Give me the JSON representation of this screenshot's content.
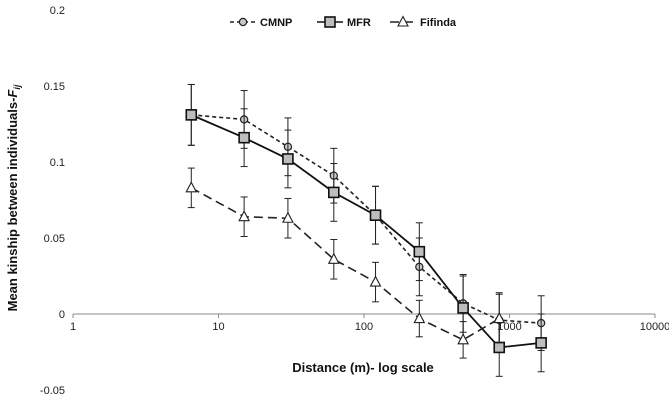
{
  "chart_data": {
    "type": "line",
    "xlabel": "Distance (m)- log scale",
    "ylabel": "Mean kinship between individuals-",
    "ylabel_symbol": "F",
    "ylabel_subscript": "ij",
    "x_scale": "log",
    "xlim": [
      1,
      10000
    ],
    "ylim": [
      -0.05,
      0.2
    ],
    "x_ticks": [
      1,
      10,
      100,
      1000,
      10000
    ],
    "x_tick_labels": [
      "1",
      "10",
      "100",
      "1000",
      "10000"
    ],
    "y_ticks": [
      -0.05,
      0,
      0.05,
      0.1,
      0.15,
      0.2
    ],
    "y_tick_labels": [
      "-0.05",
      "0",
      "0.05",
      "0.1",
      "0.15",
      "0.2"
    ],
    "grid": false,
    "legend_position": "top-center",
    "series": [
      {
        "name": "CMNP",
        "line_style": "short-dash",
        "marker": "circle",
        "marker_fill": "#c8c8c8",
        "color": "#222222",
        "x": [
          6.5,
          15,
          30,
          62,
          120,
          240,
          480,
          850,
          1650
        ],
        "y": [
          0.131,
          0.128,
          0.11,
          0.091,
          0.065,
          0.031,
          0.007,
          -0.004,
          -0.006
        ],
        "err": [
          0.02,
          0.019,
          0.019,
          0.018,
          0.019,
          0.019,
          0.019,
          0.018,
          0.018
        ]
      },
      {
        "name": "MFR",
        "line_style": "solid",
        "marker": "square",
        "marker_fill": "#bdbdbd",
        "color": "#111111",
        "x": [
          6.5,
          15,
          30,
          62,
          120,
          240,
          480,
          850,
          1650
        ],
        "y": [
          0.131,
          0.116,
          0.102,
          0.08,
          0.065,
          0.041,
          0.004,
          -0.022,
          -0.019
        ],
        "err": [
          0.02,
          0.019,
          0.019,
          0.019,
          0.019,
          0.019,
          0.021,
          0.019,
          0.019
        ]
      },
      {
        "name": "Fifinda",
        "line_style": "long-dash",
        "marker": "triangle",
        "marker_fill": "#ffffff",
        "color": "#222222",
        "x": [
          6.5,
          15,
          30,
          62,
          120,
          240,
          480,
          850
        ],
        "y": [
          0.083,
          0.064,
          0.063,
          0.036,
          0.021,
          -0.003,
          -0.017,
          -0.003
        ],
        "err": [
          0.013,
          0.013,
          0.013,
          0.013,
          0.013,
          0.012,
          0.012,
          0.016
        ]
      }
    ]
  }
}
